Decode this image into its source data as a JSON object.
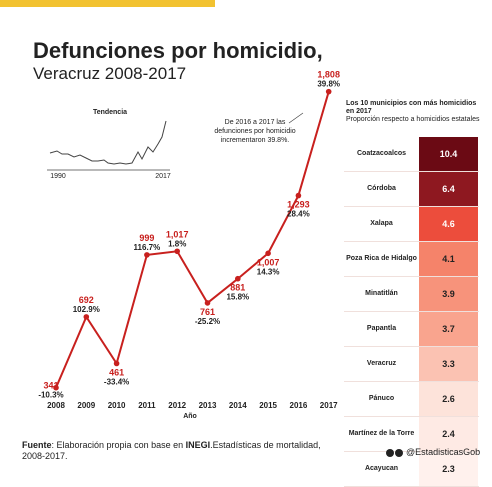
{
  "title": "Defunciones por homicidio,",
  "subtitle": "Veracruz 2008-2017",
  "trend": {
    "label": "Tendencia",
    "start": "1990",
    "end": "2017"
  },
  "annotation": [
    "De 2016 a 2017 las",
    "defunciones por homicidio",
    "incrementaron 39.8%."
  ],
  "chart_data": {
    "type": "line",
    "xlabel": "Año",
    "categories": [
      "2008",
      "2009",
      "2010",
      "2011",
      "2012",
      "2013",
      "2014",
      "2015",
      "2016",
      "2017"
    ],
    "values": [
      341,
      692,
      461,
      999,
      1017,
      761,
      881,
      1007,
      1293,
      1808
    ],
    "value_labels": [
      "341",
      "692",
      "461",
      "999",
      "1,017",
      "761",
      "881",
      "1,007",
      "1,293",
      "1,808"
    ],
    "pct_labels": [
      "-10.3%",
      "102.9%",
      "-33.4%",
      "116.7%",
      "1.8%",
      "-25.2%",
      "15.8%",
      "14.3%",
      "28.4%",
      "39.8%"
    ],
    "line_color": "#c8201e"
  },
  "ranking": {
    "title": "Los 10 municipios con más homicidios en 2017",
    "subtitle": "Proporción respecto a homicidios estatales",
    "rows": [
      {
        "name": "Coatzacoalcos",
        "value": "10.4",
        "color": "#6b0a14",
        "text": "#ffffff"
      },
      {
        "name": "Córdoba",
        "value": "6.4",
        "color": "#8e1820",
        "text": "#ffffff"
      },
      {
        "name": "Xalapa",
        "value": "4.6",
        "color": "#ec4d3c",
        "text": "#ffffff"
      },
      {
        "name": "Poza Rica de Hidalgo",
        "value": "4.1",
        "color": "#f5836a",
        "text": "#222222"
      },
      {
        "name": "Minatitlán",
        "value": "3.9",
        "color": "#f7937b",
        "text": "#222222"
      },
      {
        "name": "Papantla",
        "value": "3.7",
        "color": "#f9a48e",
        "text": "#222222"
      },
      {
        "name": "Veracruz",
        "value": "3.3",
        "color": "#fbc2b2",
        "text": "#222222"
      },
      {
        "name": "Pánuco",
        "value": "2.6",
        "color": "#fde3da",
        "text": "#222222"
      },
      {
        "name": "Martínez de la Torre",
        "value": "2.4",
        "color": "#feeae4",
        "text": "#222222"
      },
      {
        "name": "Acayucan",
        "value": "2.3",
        "color": "#fff1ed",
        "text": "#222222"
      }
    ]
  },
  "footer": {
    "source_label": "Fuente",
    "source_text": ": Elaboración propia con base en ",
    "source_bold": "INEGI",
    "source_rest": ".Estadísticas de mortalidad, 2008-2017."
  },
  "social": "@EstadisticasGob"
}
